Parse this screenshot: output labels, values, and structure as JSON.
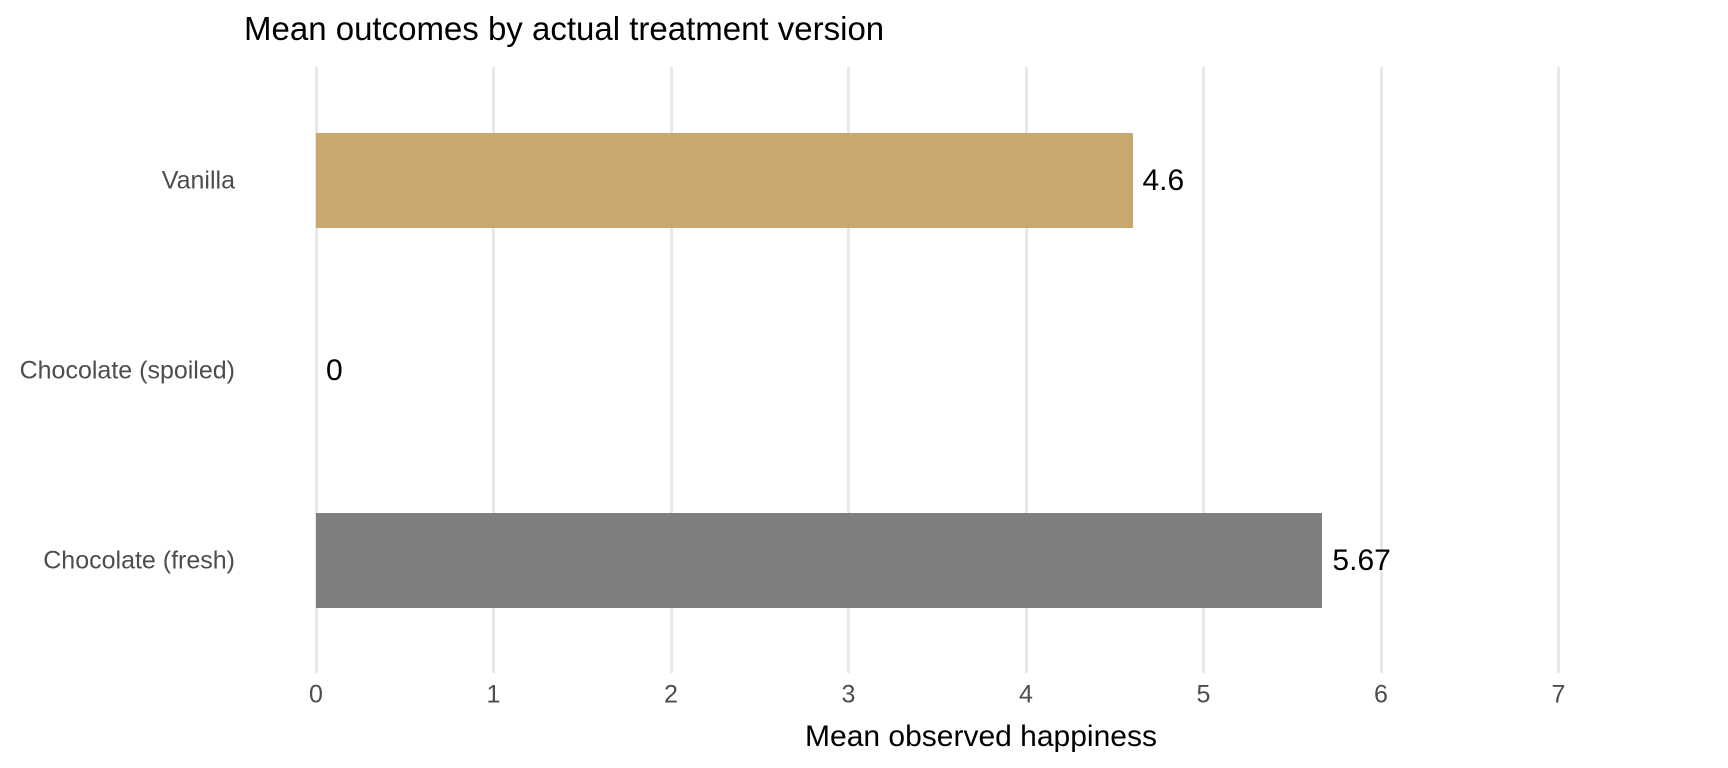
{
  "chart_data": {
    "type": "bar",
    "orientation": "horizontal",
    "title": "Mean outcomes by actual treatment version",
    "xlabel": "Mean observed happiness",
    "ylabel": "",
    "categories": [
      "Vanilla",
      "Chocolate (spoiled)",
      "Chocolate (fresh)"
    ],
    "values": [
      4.6,
      0,
      5.67
    ],
    "value_labels": [
      "4.6",
      "0",
      "5.67"
    ],
    "bar_colors": [
      "#C9A76D",
      null,
      "#7F7F7F"
    ],
    "x_ticks": [
      0,
      1,
      2,
      3,
      4,
      5,
      6,
      7
    ],
    "xlim": [
      0,
      7.5
    ],
    "grid": "vertical-major-only",
    "legend": "none"
  },
  "colors": {
    "bar_vanilla": "#C9A76D",
    "bar_chocolate_fresh": "#7F7F7F",
    "gridline": "#E8E8E8",
    "axis_text": "#4D4D4D",
    "title_text": "#000000",
    "background": "#FFFFFF"
  }
}
